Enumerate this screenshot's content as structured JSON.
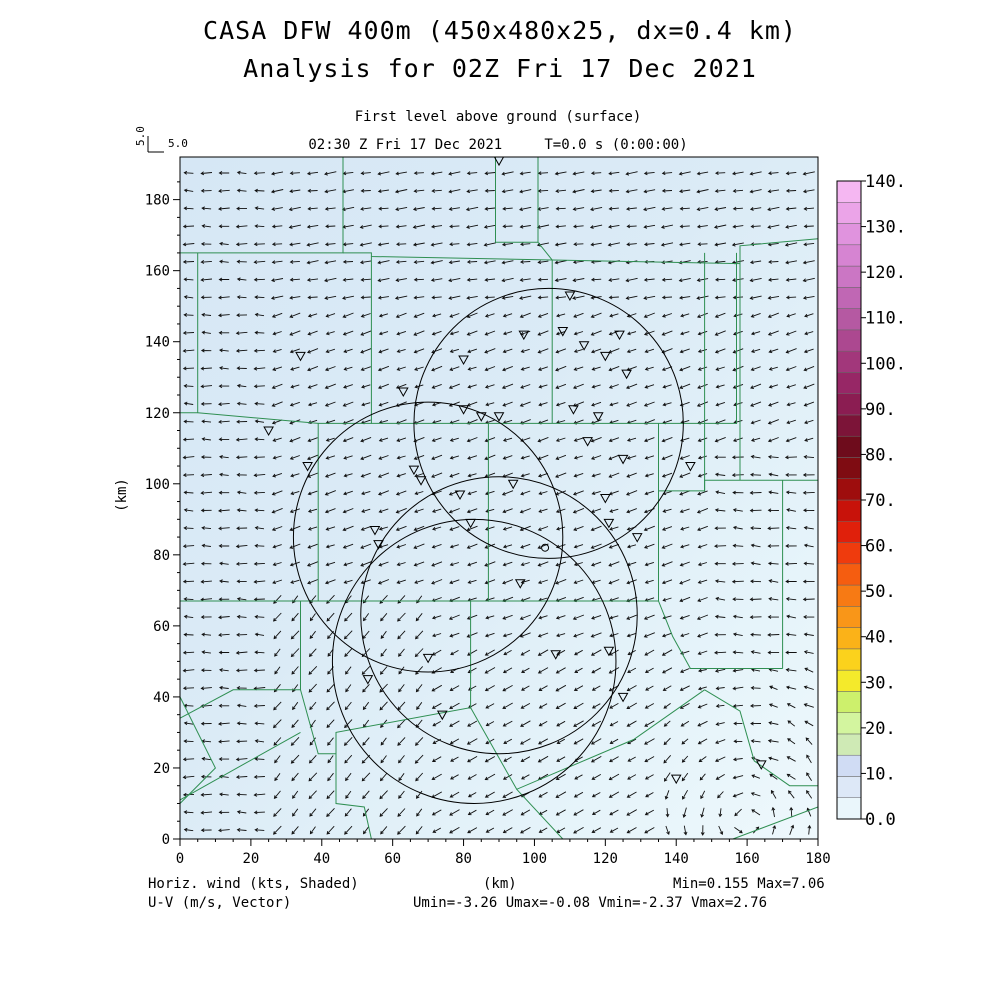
{
  "title_line1": "CASA DFW 400m (450x480x25, dx=0.4 km)",
  "title_line2": "Analysis for 02Z Fri 17 Dec 2021",
  "subtitle_level": "First level above ground (surface)",
  "subtitle_time": "02:30 Z Fri 17 Dec 2021     T=0.0 s (0:00:00)",
  "reference_vector": {
    "label_x": "5.0",
    "label_y": "5.0"
  },
  "footer": {
    "left_line1": "Horiz. wind (kts, Shaded)",
    "left_line2": "U-V (m/s, Vector)",
    "center": "(km)",
    "right_line1": "Min=0.155 Max=7.06",
    "right_line2": "Umin=-3.26 Umax=-0.08 Vmin=-2.37 Vmax=2.76"
  },
  "colorbar": {
    "labels": [
      "0.0",
      "10.",
      "20.",
      "30.",
      "40.",
      "50.",
      "60.",
      "70.",
      "80.",
      "90.",
      "100.",
      "110.",
      "120.",
      "130.",
      "140."
    ],
    "colors": [
      "#eaf6fb",
      "#dde8f7",
      "#d0dcf4",
      "#cfeab5",
      "#d3f59f",
      "#cdf06c",
      "#f4ea2b",
      "#fbd21c",
      "#fbb218",
      "#f99618",
      "#f77a14",
      "#f55d10",
      "#ef3b0d",
      "#e0200b",
      "#c8120a",
      "#9e0d0d",
      "#7f0c12",
      "#6e0c1c",
      "#7c1438",
      "#8b1d52",
      "#972766",
      "#a2377b",
      "#ac4890",
      "#b559a2",
      "#c067b4",
      "#cb76c4",
      "#d684d2",
      "#e093de",
      "#eba4e8",
      "#f5b7f2"
    ]
  },
  "chart_data": {
    "type": "vector field map",
    "variable_shaded": "Horiz. wind (kts, Shaded)",
    "variable_vector": "U-V (m/s, Vector)",
    "xlabel": "(km)",
    "ylabel": "(km)",
    "xlim": [
      0,
      180
    ],
    "ylim": [
      0,
      192
    ],
    "xticks": [
      0,
      20,
      40,
      60,
      80,
      100,
      120,
      140,
      160,
      180
    ],
    "yticks": [
      0,
      20,
      40,
      60,
      80,
      100,
      120,
      140,
      160,
      180
    ],
    "shading_range_kts": [
      0,
      140
    ],
    "min": 0.155,
    "max": 7.06,
    "umin": -3.26,
    "umax": -0.08,
    "vmin": -2.37,
    "vmax": 2.76,
    "radar_range_rings": [
      {
        "center": [
          83,
          50
        ],
        "radius": 40
      },
      {
        "center": [
          90,
          63
        ],
        "radius": 39
      },
      {
        "center": [
          70,
          85
        ],
        "radius": 38
      },
      {
        "center": [
          104,
          117
        ],
        "radius": 38
      }
    ],
    "station_markers": [
      [
        90,
        191
      ],
      [
        110,
        153
      ],
      [
        108,
        143
      ],
      [
        97,
        142
      ],
      [
        124,
        142
      ],
      [
        114,
        139
      ],
      [
        120,
        136
      ],
      [
        34,
        136
      ],
      [
        63,
        126
      ],
      [
        126,
        131
      ],
      [
        80,
        135
      ],
      [
        80,
        121
      ],
      [
        85,
        119
      ],
      [
        90,
        119
      ],
      [
        111,
        121
      ],
      [
        118,
        119
      ],
      [
        25,
        115
      ],
      [
        36,
        105
      ],
      [
        66,
        104
      ],
      [
        68,
        101
      ],
      [
        79,
        97
      ],
      [
        115,
        112
      ],
      [
        125,
        107
      ],
      [
        144,
        105
      ],
      [
        94,
        100
      ],
      [
        120,
        96
      ],
      [
        82,
        89
      ],
      [
        121,
        89
      ],
      [
        129,
        85
      ],
      [
        55,
        87
      ],
      [
        56,
        83
      ],
      [
        96,
        72
      ],
      [
        70,
        51
      ],
      [
        106,
        52
      ],
      [
        121,
        53
      ],
      [
        53,
        45
      ],
      [
        74,
        35
      ],
      [
        125,
        40
      ],
      [
        140,
        17
      ],
      [
        164,
        21
      ]
    ],
    "radar_site": [
      103,
      82
    ]
  }
}
